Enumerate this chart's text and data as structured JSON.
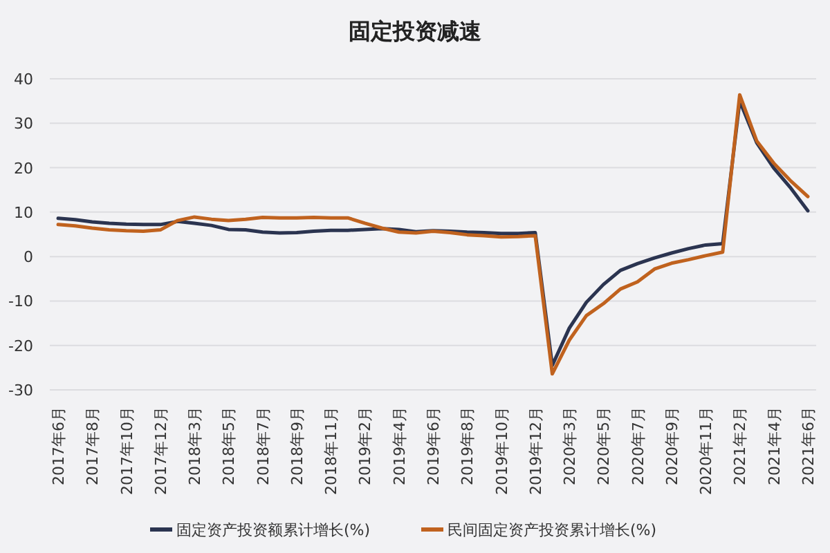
{
  "chart_data": {
    "type": "line",
    "title": "固定投资减速",
    "categories": [
      "2017年6月",
      null,
      "2017年8月",
      null,
      "2017年10月",
      null,
      "2017年12月",
      null,
      "2018年3月",
      null,
      "2018年5月",
      null,
      "2018年7月",
      null,
      "2018年9月",
      null,
      "2018年11月",
      null,
      "2019年2月",
      null,
      "2019年4月",
      null,
      "2019年6月",
      null,
      "2019年8月",
      null,
      "2019年10月",
      null,
      "2019年12月",
      null,
      "2020年3月",
      null,
      "2020年5月",
      null,
      "2020年7月",
      null,
      "2020年9月",
      null,
      "2020年11月",
      null,
      "2021年2月",
      null,
      "2021年4月",
      null,
      "2021年6月"
    ],
    "series": [
      {
        "name": "固定资产投资额累计增长(%)",
        "color": "#2b3450",
        "values": [
          8.6,
          8.3,
          7.8,
          7.5,
          7.3,
          7.2,
          7.2,
          7.9,
          7.5,
          7.0,
          6.1,
          6.0,
          5.5,
          5.3,
          5.4,
          5.7,
          5.9,
          5.9,
          6.1,
          6.3,
          6.1,
          5.6,
          5.8,
          5.7,
          5.5,
          5.4,
          5.2,
          5.2,
          5.4,
          -24.5,
          -16.1,
          -10.3,
          -6.3,
          -3.1,
          -1.6,
          -0.3,
          0.8,
          1.8,
          2.6,
          2.9,
          35.0,
          25.6,
          19.9,
          15.4,
          10.3
        ]
      },
      {
        "name": "民间固定资产投资累计增长(%)",
        "color": "#c0621e",
        "values": [
          7.2,
          6.9,
          6.4,
          6.0,
          5.8,
          5.7,
          6.0,
          8.1,
          8.9,
          8.4,
          8.1,
          8.4,
          8.8,
          8.7,
          8.7,
          8.8,
          8.7,
          8.7,
          7.5,
          6.4,
          5.5,
          5.3,
          5.7,
          5.4,
          4.9,
          4.7,
          4.4,
          4.5,
          4.7,
          -26.4,
          -18.8,
          -13.3,
          -10.6,
          -7.3,
          -5.7,
          -2.8,
          -1.5,
          -0.7,
          0.2,
          1.0,
          36.4,
          26.0,
          21.0,
          17.0,
          13.5
        ]
      }
    ],
    "ylim": [
      -30,
      40
    ],
    "yticks": [
      -30,
      -20,
      -10,
      0,
      10,
      20,
      30,
      40
    ],
    "grid": "y",
    "legend": "bottom"
  }
}
